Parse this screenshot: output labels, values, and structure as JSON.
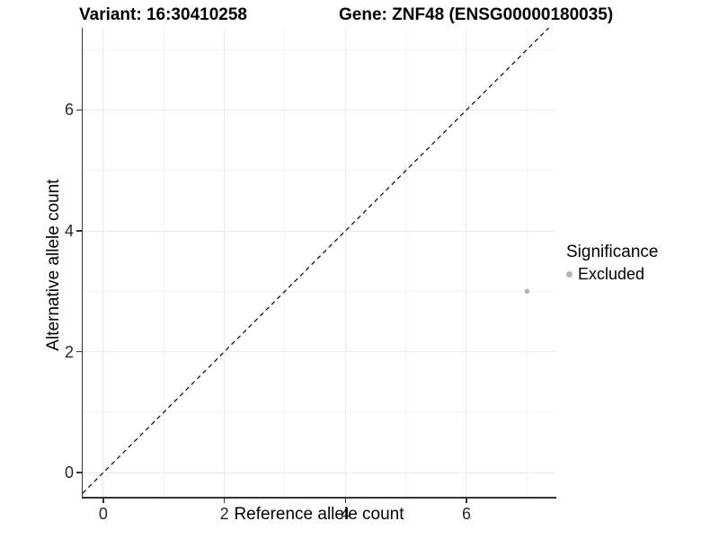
{
  "chart_data": {
    "type": "scatter",
    "title_variant": "Variant: 16:30410258",
    "title_gene": "Gene: ZNF48 (ENSG00000180035)",
    "xlabel": "Reference allele count",
    "ylabel": "Alternative allele count",
    "x_range": [
      -0.34,
      7.47
    ],
    "y_range": [
      -0.4,
      7.36
    ],
    "x_ticks_major": [
      0,
      2,
      4,
      6
    ],
    "x_ticks_minor": [
      1,
      3,
      5,
      7
    ],
    "y_ticks_major": [
      0,
      2,
      4,
      6
    ],
    "y_ticks_minor": [
      1,
      3,
      5,
      7
    ],
    "grid": true,
    "points": [
      {
        "x": 7,
        "y": 3,
        "significance": "Excluded"
      }
    ],
    "reference_line": {
      "slope": 1,
      "intercept": 0,
      "style": "dashed",
      "color": "#000000"
    },
    "legend": {
      "title": "Significance",
      "position": "right",
      "entries": [
        {
          "label": "Excluded",
          "color": "#b4b4b4"
        }
      ]
    }
  },
  "colors": {
    "background": "#ffffff",
    "grid_major": "#ebebeb",
    "grid_minor": "#f3f3f3",
    "axis_line": "#333333",
    "tick_label": "#262626",
    "point": "#b4b4b4"
  }
}
